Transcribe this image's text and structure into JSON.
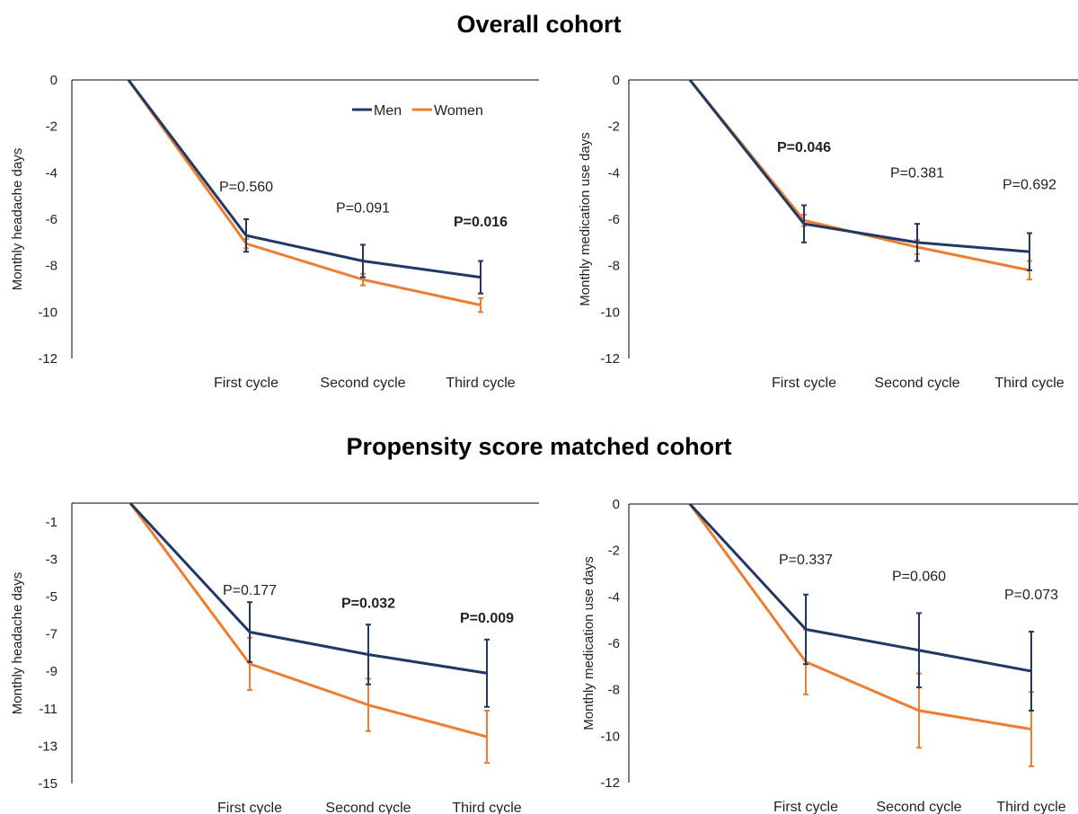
{
  "sections": [
    {
      "title": "Overall cohort"
    },
    {
      "title": "Propensity score matched cohort"
    }
  ],
  "colors": {
    "men": "#1f3864",
    "women": "#ed7d31",
    "axis": "#000000"
  },
  "legend": {
    "men": "Men",
    "women": "Women"
  },
  "chart_data": [
    {
      "type": "line",
      "section": "Overall cohort",
      "xlabel": "",
      "ylabel": "Monthly headache days",
      "categories": [
        "",
        "First cycle",
        "Second cycle",
        "Third cycle"
      ],
      "ylim": [
        -12,
        0
      ],
      "yticks": [
        0,
        -2,
        -4,
        -6,
        -8,
        -10,
        -12
      ],
      "legend_position": "top-right",
      "series": [
        {
          "name": "Men",
          "values": [
            0,
            -6.7,
            -7.8,
            -8.5
          ],
          "err": [
            null,
            0.7,
            0.7,
            0.7
          ]
        },
        {
          "name": "Women",
          "values": [
            0,
            -7.05,
            -8.6,
            -9.7
          ],
          "err": [
            null,
            0.2,
            0.25,
            0.3
          ]
        }
      ],
      "annotations": [
        {
          "text": "P=0.560",
          "category": 1,
          "y": -4.8,
          "bold": false
        },
        {
          "text": "P=0.091",
          "category": 2,
          "y": -5.7,
          "bold": false
        },
        {
          "text": "P=0.016",
          "category": 3,
          "y": -6.3,
          "bold": true
        }
      ]
    },
    {
      "type": "line",
      "section": "Overall cohort",
      "xlabel": "",
      "ylabel": "Monthly medication use days",
      "categories": [
        "",
        "First cycle",
        "Second cycle",
        "Third cycle"
      ],
      "ylim": [
        -12,
        0
      ],
      "yticks": [
        0,
        -2,
        -4,
        -6,
        -8,
        -10,
        -12
      ],
      "series": [
        {
          "name": "Men",
          "values": [
            0,
            -6.2,
            -7.0,
            -7.4
          ],
          "err": [
            null,
            0.8,
            0.8,
            0.8
          ]
        },
        {
          "name": "Women",
          "values": [
            0,
            -6.05,
            -7.2,
            -8.2
          ],
          "err": [
            null,
            0.25,
            0.3,
            0.4
          ]
        }
      ],
      "annotations": [
        {
          "text": "P=0.046",
          "category": 1,
          "y": -3.1,
          "bold": true
        },
        {
          "text": "P=0.381",
          "category": 2,
          "y": -4.2,
          "bold": false
        },
        {
          "text": "P=0.692",
          "category": 3,
          "y": -4.7,
          "bold": false
        }
      ]
    },
    {
      "type": "line",
      "section": "Propensity score matched cohort",
      "xlabel": "",
      "ylabel": "Monthly headache days",
      "categories": [
        "",
        "First cycle",
        "Second cycle",
        "Third cycle"
      ],
      "ylim": [
        -15,
        0
      ],
      "yticks": [
        -1,
        -3,
        -5,
        -7,
        -9,
        -11,
        -13,
        -15
      ],
      "series": [
        {
          "name": "Men",
          "values": [
            0,
            -6.9,
            -8.1,
            -9.1
          ],
          "err": [
            null,
            1.6,
            1.6,
            1.8
          ]
        },
        {
          "name": "Women",
          "values": [
            0,
            -8.6,
            -10.8,
            -12.5
          ],
          "err": [
            null,
            1.4,
            1.4,
            1.4
          ]
        }
      ],
      "annotations": [
        {
          "text": "P=0.177",
          "category": 1,
          "y": -4.9,
          "bold": false
        },
        {
          "text": "P=0.032",
          "category": 2,
          "y": -5.6,
          "bold": true
        },
        {
          "text": "P=0.009",
          "category": 3,
          "y": -6.4,
          "bold": true
        }
      ]
    },
    {
      "type": "line",
      "section": "Propensity score matched cohort",
      "xlabel": "",
      "ylabel": "Monthly medication use days",
      "categories": [
        "",
        "First cycle",
        "Second cycle",
        "Third cycle"
      ],
      "ylim": [
        -12,
        0
      ],
      "yticks": [
        0,
        -2,
        -4,
        -6,
        -8,
        -10,
        -12
      ],
      "series": [
        {
          "name": "Men",
          "values": [
            0,
            -5.4,
            -6.3,
            -7.2
          ],
          "err": [
            null,
            1.5,
            1.6,
            1.7
          ]
        },
        {
          "name": "Women",
          "values": [
            0,
            -6.8,
            -8.9,
            -9.7
          ],
          "err": [
            null,
            1.4,
            1.6,
            1.6
          ]
        }
      ],
      "annotations": [
        {
          "text": "P=0.337",
          "category": 1,
          "y": -2.6,
          "bold": false
        },
        {
          "text": "P=0.060",
          "category": 2,
          "y": -3.3,
          "bold": false
        },
        {
          "text": "P=0.073",
          "category": 3,
          "y": -4.1,
          "bold": false
        }
      ]
    }
  ]
}
